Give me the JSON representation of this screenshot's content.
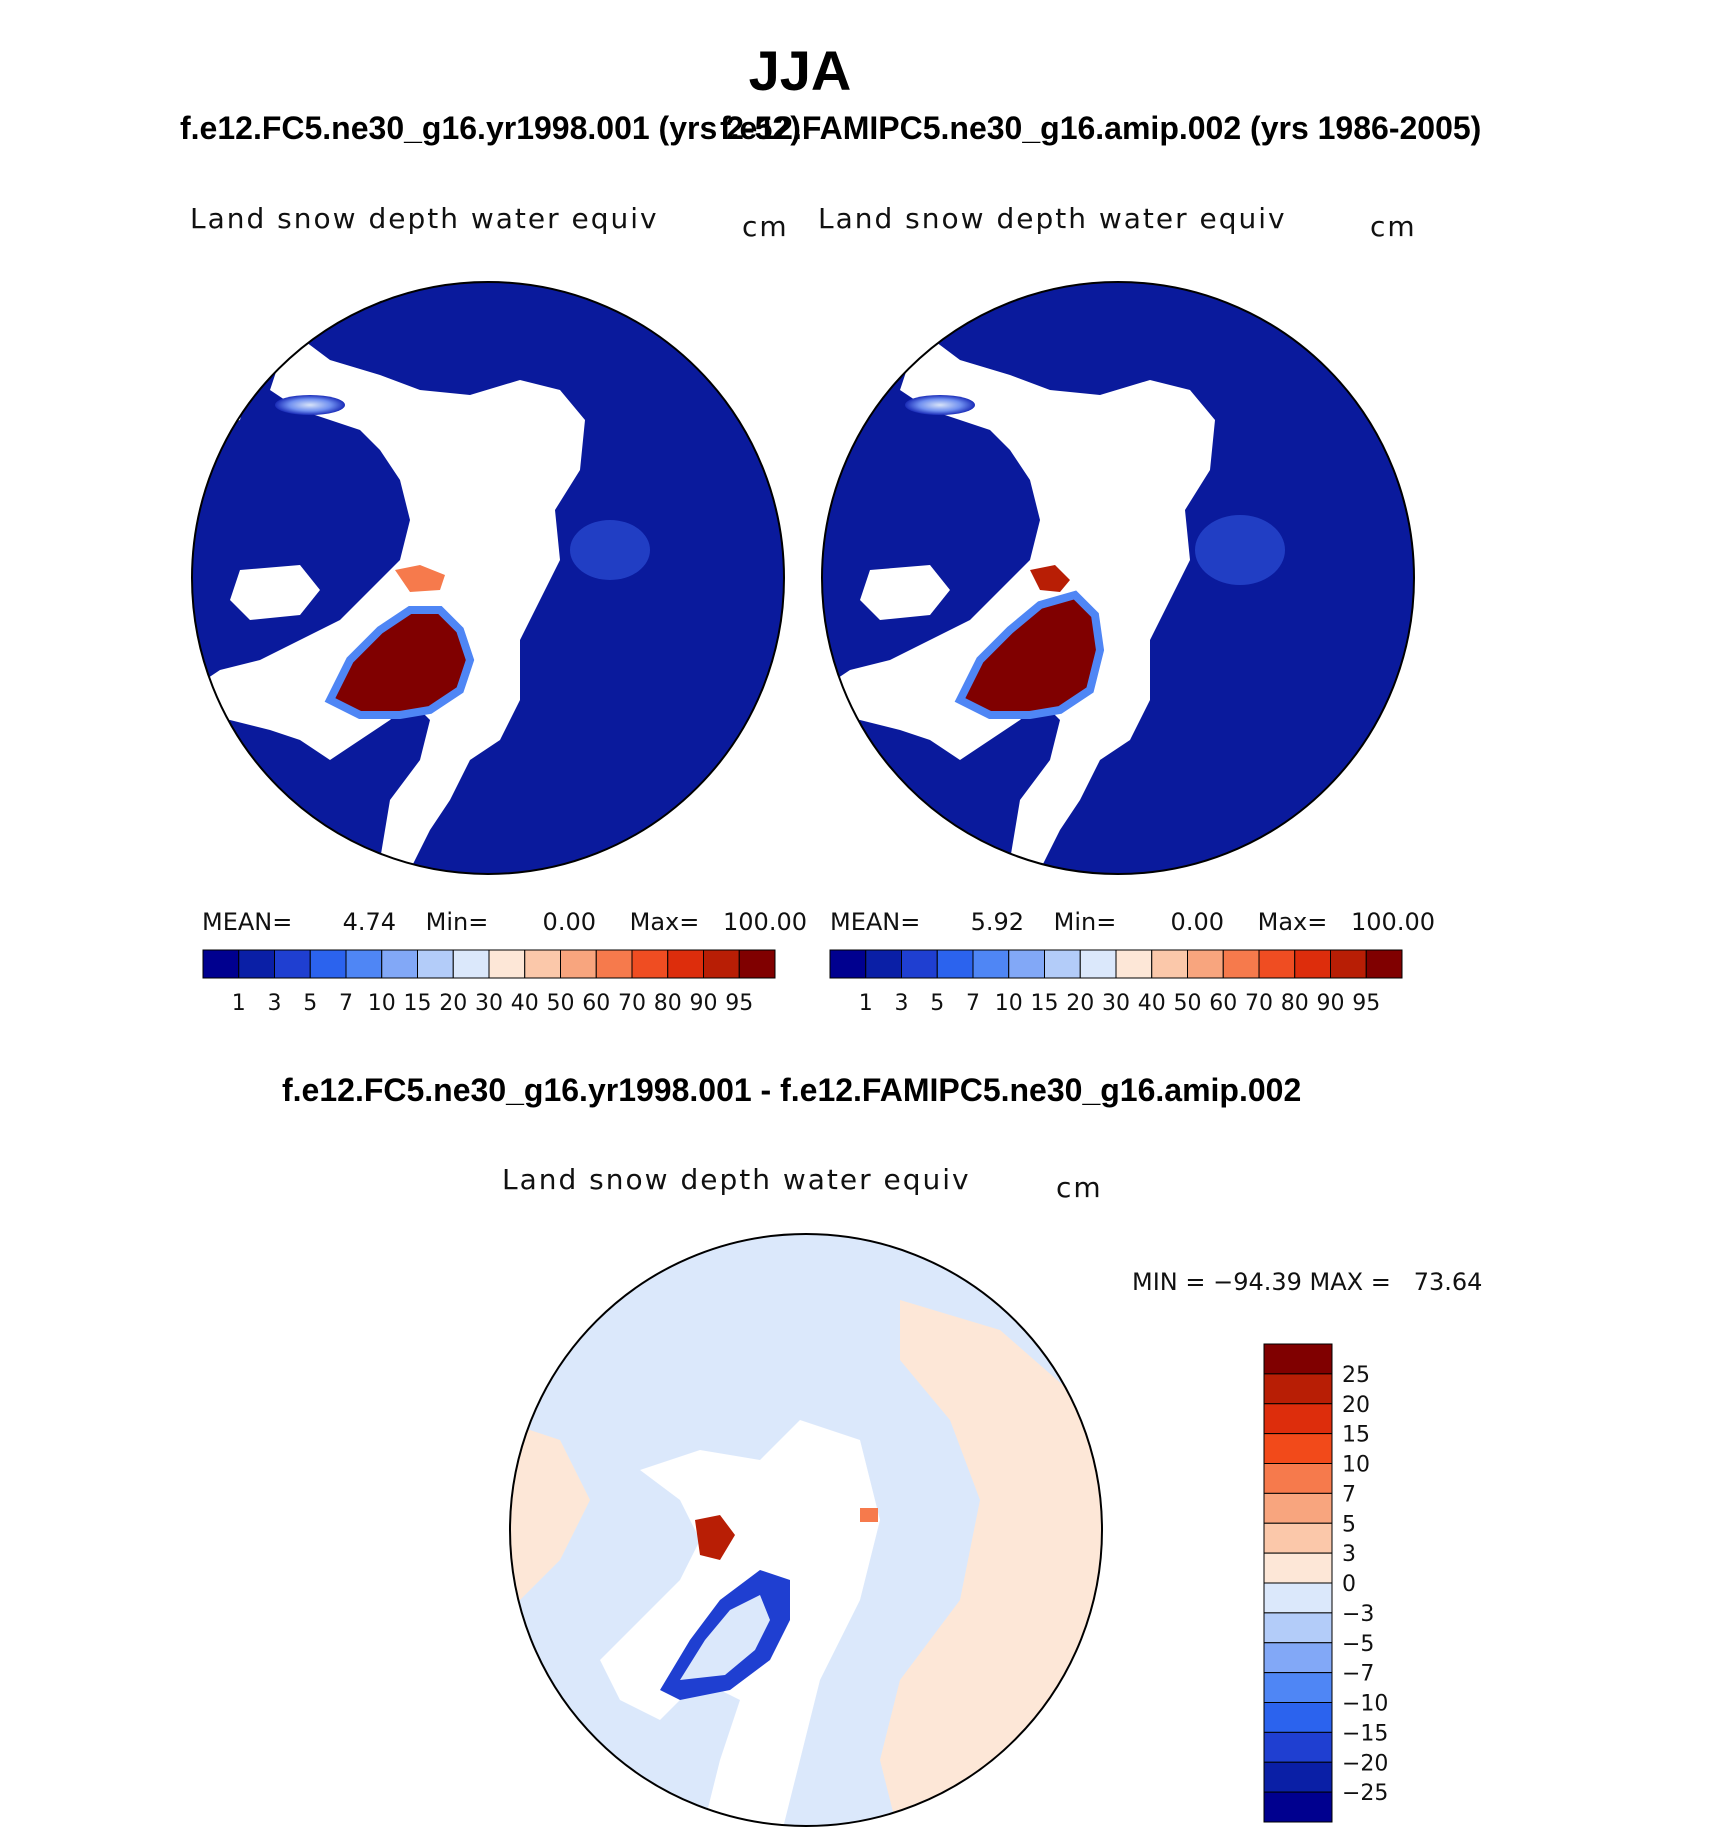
{
  "page": {
    "title": "JJA",
    "case1_header": "f.e12.FC5.ne30_g16.yr1998.001 (yrs 2-52)",
    "case2_header": "f.e12.FAMIPC5.ne30_g16.amip.002 (yrs 1986-2005)",
    "diff_header": "f.e12.FC5.ne30_g16.yr1998.001 - f.e12.FAMIPC5.ne30_g16.amip.002"
  },
  "panels": [
    {
      "id": "case1",
      "label": "Land snow depth water equiv",
      "units": "cm",
      "mean_label": "MEAN=",
      "mean": "4.74",
      "min_label": "Min=",
      "min": "0.00",
      "max_label": "Max=",
      "max": "100.00"
    },
    {
      "id": "case2",
      "label": "Land snow depth water equiv",
      "units": "cm",
      "mean_label": "MEAN=",
      "mean": "5.92",
      "min_label": "Min=",
      "min": "0.00",
      "max_label": "Max=",
      "max": "100.00"
    },
    {
      "id": "diff",
      "label": "Land snow depth water equiv",
      "units": "cm",
      "minmax_text": "MIN = −94.39 MAX =   73.64"
    }
  ],
  "colorbars": {
    "abs_levels": [
      "1",
      "3",
      "5",
      "7",
      "10",
      "15",
      "20",
      "30",
      "40",
      "50",
      "60",
      "70",
      "80",
      "90",
      "95"
    ],
    "abs_colors": [
      "#00008f",
      "#0a1fa6",
      "#1f3fd1",
      "#2b63ee",
      "#4f86f5",
      "#82a8f7",
      "#b3ccf9",
      "#dbe8fb",
      "#fde7d7",
      "#fbc8aa",
      "#f8a57e",
      "#f67a4c",
      "#ef4d22",
      "#dd2d0c",
      "#b81e05",
      "#800000"
    ],
    "diff_levels": [
      "25",
      "20",
      "15",
      "10",
      "7",
      "5",
      "3",
      "0",
      "−3",
      "−5",
      "−7",
      "−10",
      "−15",
      "−20",
      "−25"
    ],
    "diff_colors": [
      "#800000",
      "#b81e05",
      "#dd2d0c",
      "#f24a1a",
      "#f67a4c",
      "#f8a57e",
      "#fbc8aa",
      "#fde7d7",
      "#dbe8fb",
      "#b3ccf9",
      "#82a8f7",
      "#4f86f5",
      "#2b63ee",
      "#1f3fd1",
      "#0a1fa6",
      "#00008f"
    ]
  }
}
